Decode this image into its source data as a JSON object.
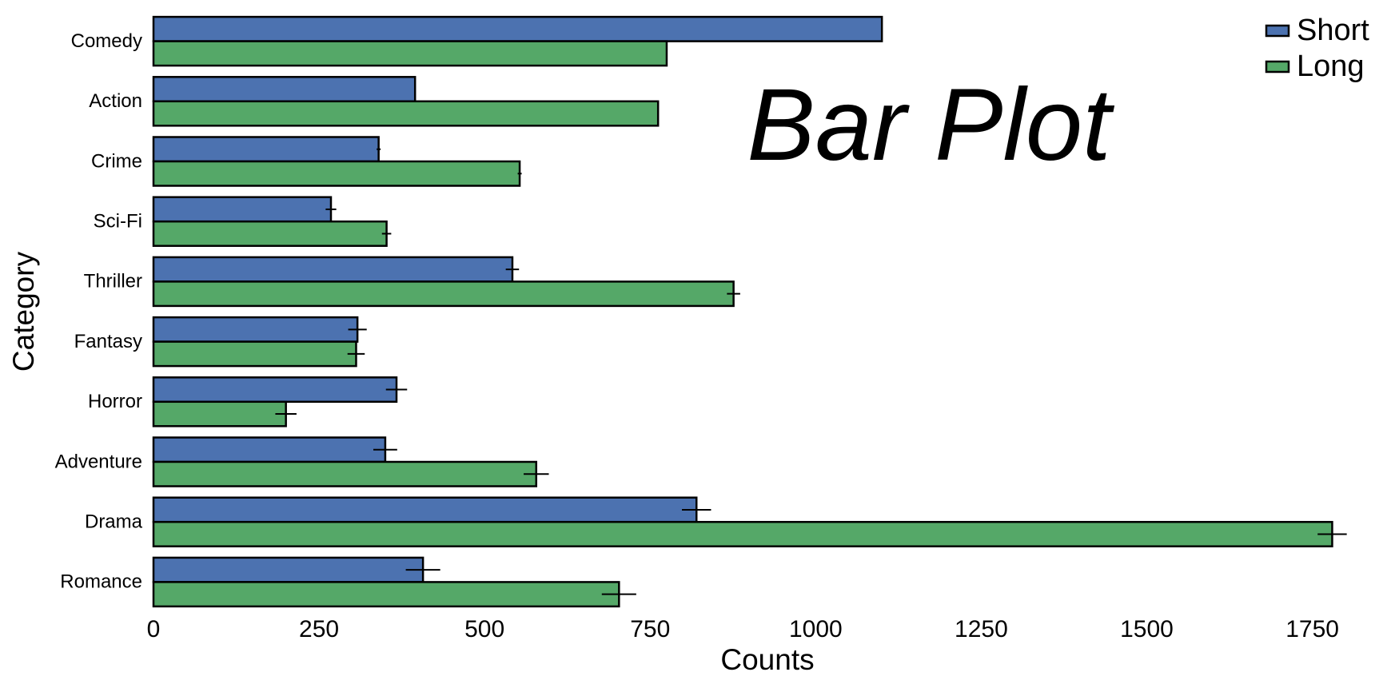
{
  "chart_data": {
    "type": "bar",
    "orientation": "horizontal",
    "title": "Bar Plot",
    "xlabel": "Counts",
    "ylabel": "Category",
    "xlim": [
      0,
      1800
    ],
    "xticks": [
      "0",
      "250",
      "500",
      "750",
      "1000",
      "1250",
      "1500",
      "1750"
    ],
    "categories": [
      "Comedy",
      "Action",
      "Crime",
      "Sci-Fi",
      "Thriller",
      "Fantasy",
      "Horror",
      "Adventure",
      "Drama",
      "Romance"
    ],
    "series": [
      {
        "name": "Short",
        "color": "#4C72B0",
        "values": [
          1100,
          395,
          340,
          268,
          542,
          308,
          367,
          350,
          820,
          407
        ],
        "errors": [
          0,
          0,
          3,
          8,
          10,
          14,
          16,
          18,
          22,
          26
        ]
      },
      {
        "name": "Long",
        "color": "#55A868",
        "values": [
          775,
          762,
          553,
          352,
          876,
          306,
          200,
          578,
          1780,
          703
        ],
        "errors": [
          0,
          0,
          3,
          7,
          10,
          13,
          16,
          19,
          22,
          26
        ]
      }
    ],
    "legend_position": "top-right",
    "grid": false
  }
}
